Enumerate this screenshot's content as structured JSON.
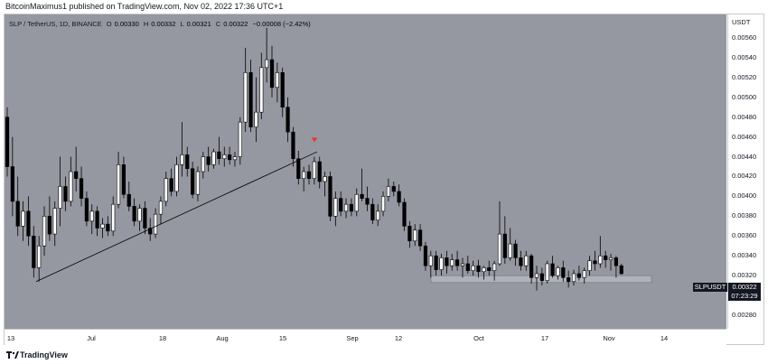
{
  "header": {
    "publish_text": "BitcoinMaximus1 published on TradingView.com, Nov 02, 2022 17:36 UTC+1"
  },
  "legend": {
    "symbol": "SLP / TetherUS, 1D, BINANCE",
    "o_label": "O",
    "o_value": "0.00330",
    "h_label": "H",
    "h_value": "0.00332",
    "l_label": "L",
    "l_value": "0.00321",
    "c_label": "C",
    "c_value": "0.00322",
    "change": "−0.00008 (−2.42%)"
  },
  "price_scale": {
    "currency": "USDT",
    "ticks": [
      "0.00560",
      "0.00540",
      "0.00520",
      "0.00500",
      "0.00480",
      "0.00460",
      "0.00440",
      "0.00420",
      "0.00400",
      "0.00380",
      "0.00360",
      "0.00340",
      "0.00320",
      "0.00300",
      "0.00280"
    ]
  },
  "last_price": {
    "symbol": "SLPUSDT",
    "price": "0.00322",
    "countdown": "07:23:29"
  },
  "time_scale": {
    "ticks": [
      "13",
      "Jul",
      "18",
      "Aug",
      "15",
      "Sep",
      "12",
      "Oct",
      "17",
      "Nov",
      "14"
    ]
  },
  "footer": {
    "brand": "TradingView",
    "logo_icon": "tradingview-logo-icon"
  },
  "colors": {
    "plot_bg": "#9598a1",
    "up_candle": "#ffffff",
    "down_candle": "#000000",
    "marker": "#e53935",
    "support_zone": "#b2b5be"
  },
  "chart_data": {
    "type": "candlestick",
    "y_range": [
      0.0027,
      0.0058
    ],
    "annotations": [
      {
        "type": "trendline",
        "from": [
          "Jun 15",
          0.00314
        ],
        "to": [
          "Aug 21",
          0.00445
        ]
      },
      {
        "type": "marker",
        "shape": "down-triangle",
        "at": [
          "Aug 20",
          0.00457
        ]
      },
      {
        "type": "zone",
        "from": "Sep 26",
        "to": "Nov 11",
        "y_range": [
          0.00313,
          0.0032
        ]
      }
    ],
    "candles": [
      [
        0.0048,
        0.0049,
        0.0042,
        0.0043
      ],
      [
        0.0043,
        0.0046,
        0.0038,
        0.00395
      ],
      [
        0.00395,
        0.0042,
        0.0036,
        0.0037
      ],
      [
        0.0037,
        0.00395,
        0.00355,
        0.00385
      ],
      [
        0.00385,
        0.004,
        0.0035,
        0.0036
      ],
      [
        0.0036,
        0.0037,
        0.00318,
        0.00328
      ],
      [
        0.00328,
        0.0036,
        0.00314,
        0.0035
      ],
      [
        0.0035,
        0.0039,
        0.0034,
        0.0038
      ],
      [
        0.0038,
        0.004,
        0.00355,
        0.00362
      ],
      [
        0.00362,
        0.00395,
        0.0035,
        0.00388
      ],
      [
        0.00388,
        0.0044,
        0.0037,
        0.0041
      ],
      [
        0.0041,
        0.0042,
        0.00385,
        0.00395
      ],
      [
        0.00395,
        0.0044,
        0.0039,
        0.00425
      ],
      [
        0.00425,
        0.0045,
        0.00405,
        0.00418
      ],
      [
        0.00418,
        0.0043,
        0.0039,
        0.00398
      ],
      [
        0.00398,
        0.00405,
        0.0037,
        0.00375
      ],
      [
        0.00375,
        0.00392,
        0.00362,
        0.00385
      ],
      [
        0.00385,
        0.0039,
        0.0036,
        0.00368
      ],
      [
        0.00368,
        0.00378,
        0.00358,
        0.00372
      ],
      [
        0.00372,
        0.0038,
        0.0036,
        0.00365
      ],
      [
        0.00365,
        0.004,
        0.0036,
        0.00392
      ],
      [
        0.00392,
        0.00445,
        0.00388,
        0.00432
      ],
      [
        0.00432,
        0.0044,
        0.00398,
        0.00402
      ],
      [
        0.00402,
        0.00415,
        0.00385,
        0.0039
      ],
      [
        0.0039,
        0.00398,
        0.0037,
        0.00375
      ],
      [
        0.00375,
        0.00392,
        0.00365,
        0.00388
      ],
      [
        0.00388,
        0.00395,
        0.00362,
        0.00368
      ],
      [
        0.00368,
        0.00378,
        0.00355,
        0.00362
      ],
      [
        0.00362,
        0.00388,
        0.00358,
        0.00382
      ],
      [
        0.00382,
        0.004,
        0.00372,
        0.00395
      ],
      [
        0.00395,
        0.00425,
        0.0039,
        0.00418
      ],
      [
        0.00418,
        0.00428,
        0.004,
        0.00405
      ],
      [
        0.00405,
        0.0044,
        0.004,
        0.00432
      ],
      [
        0.00432,
        0.00475,
        0.0042,
        0.00442
      ],
      [
        0.00442,
        0.0045,
        0.0042,
        0.00428
      ],
      [
        0.00428,
        0.00435,
        0.00398,
        0.00402
      ],
      [
        0.00402,
        0.0043,
        0.00395,
        0.00425
      ],
      [
        0.00425,
        0.00445,
        0.00418,
        0.0044
      ],
      [
        0.0044,
        0.0045,
        0.00425,
        0.00432
      ],
      [
        0.00432,
        0.00448,
        0.00428,
        0.00445
      ],
      [
        0.00445,
        0.0046,
        0.00432,
        0.00438
      ],
      [
        0.00438,
        0.0045,
        0.0043,
        0.00442
      ],
      [
        0.00442,
        0.0045,
        0.00432,
        0.00437
      ],
      [
        0.00437,
        0.00445,
        0.0043,
        0.0044
      ],
      [
        0.0044,
        0.0048,
        0.00432,
        0.00475
      ],
      [
        0.00475,
        0.0055,
        0.00465,
        0.00525
      ],
      [
        0.00525,
        0.00538,
        0.00465,
        0.0047
      ],
      [
        0.0047,
        0.0052,
        0.00455,
        0.00485
      ],
      [
        0.00485,
        0.00545,
        0.00478,
        0.0053
      ],
      [
        0.0053,
        0.0057,
        0.00515,
        0.00538
      ],
      [
        0.00538,
        0.00552,
        0.005,
        0.0051
      ],
      [
        0.0051,
        0.00535,
        0.00495,
        0.00525
      ],
      [
        0.00525,
        0.0053,
        0.0048,
        0.0049
      ],
      [
        0.0049,
        0.005,
        0.00455,
        0.00465
      ],
      [
        0.00465,
        0.0047,
        0.0043,
        0.00438
      ],
      [
        0.00438,
        0.00446,
        0.00412,
        0.00418
      ],
      [
        0.00418,
        0.0043,
        0.00405,
        0.00425
      ],
      [
        0.00425,
        0.00432,
        0.00412,
        0.00418
      ],
      [
        0.00418,
        0.0044,
        0.00412,
        0.00435
      ],
      [
        0.00435,
        0.0044,
        0.00408,
        0.00415
      ],
      [
        0.00415,
        0.00425,
        0.004,
        0.0042
      ],
      [
        0.0042,
        0.00425,
        0.00375,
        0.0038
      ],
      [
        0.0038,
        0.00405,
        0.0037,
        0.00398
      ],
      [
        0.00398,
        0.00405,
        0.0038,
        0.00385
      ],
      [
        0.00385,
        0.00398,
        0.00378,
        0.00392
      ],
      [
        0.00392,
        0.00398,
        0.0038,
        0.00385
      ],
      [
        0.00385,
        0.00408,
        0.0038,
        0.00402
      ],
      [
        0.00402,
        0.00428,
        0.00395,
        0.00398
      ],
      [
        0.00398,
        0.0041,
        0.00385,
        0.00392
      ],
      [
        0.00392,
        0.00398,
        0.00372,
        0.00376
      ],
      [
        0.00376,
        0.00392,
        0.0037,
        0.00385
      ],
      [
        0.00385,
        0.00405,
        0.0038,
        0.004
      ],
      [
        0.004,
        0.00418,
        0.00395,
        0.0041
      ],
      [
        0.0041,
        0.00415,
        0.004,
        0.00405
      ],
      [
        0.00405,
        0.00412,
        0.0039,
        0.00394
      ],
      [
        0.00394,
        0.00398,
        0.00365,
        0.0037
      ],
      [
        0.0037,
        0.00375,
        0.00348,
        0.00355
      ],
      [
        0.00355,
        0.00372,
        0.0035,
        0.00366
      ],
      [
        0.00366,
        0.00372,
        0.00345,
        0.0035
      ],
      [
        0.0035,
        0.00354,
        0.00325,
        0.0033
      ],
      [
        0.0033,
        0.00345,
        0.00318,
        0.0034
      ],
      [
        0.0034,
        0.00345,
        0.0032,
        0.00326
      ],
      [
        0.00326,
        0.00342,
        0.0032,
        0.00338
      ],
      [
        0.00338,
        0.00345,
        0.00322,
        0.0033
      ],
      [
        0.0033,
        0.00342,
        0.00325,
        0.00336
      ],
      [
        0.00336,
        0.00345,
        0.00325,
        0.0033
      ],
      [
        0.0033,
        0.00338,
        0.00318,
        0.00332
      ],
      [
        0.00332,
        0.0034,
        0.00322,
        0.00325
      ],
      [
        0.00325,
        0.00335,
        0.0032,
        0.0033
      ],
      [
        0.0033,
        0.00336,
        0.00318,
        0.00324
      ],
      [
        0.00324,
        0.0033,
        0.00316,
        0.00328
      ],
      [
        0.00328,
        0.00335,
        0.0032,
        0.00325
      ],
      [
        0.00325,
        0.00335,
        0.00315,
        0.00332
      ],
      [
        0.00332,
        0.00395,
        0.0033,
        0.00362
      ],
      [
        0.00362,
        0.0038,
        0.00332,
        0.00338
      ],
      [
        0.00338,
        0.00368,
        0.00335,
        0.00352
      ],
      [
        0.00352,
        0.00356,
        0.0033,
        0.00338
      ],
      [
        0.00338,
        0.00345,
        0.00325,
        0.0033
      ],
      [
        0.0033,
        0.00345,
        0.00325,
        0.0034
      ],
      [
        0.0034,
        0.00342,
        0.00312,
        0.00318
      ],
      [
        0.00318,
        0.0033,
        0.00305,
        0.00322
      ],
      [
        0.00322,
        0.00328,
        0.0031,
        0.00315
      ],
      [
        0.00315,
        0.00335,
        0.00312,
        0.00332
      ],
      [
        0.00332,
        0.0034,
        0.00318,
        0.0032
      ],
      [
        0.0032,
        0.0033,
        0.00316,
        0.00328
      ],
      [
        0.00328,
        0.00335,
        0.00314,
        0.00318
      ],
      [
        0.00318,
        0.00325,
        0.00308,
        0.00314
      ],
      [
        0.00314,
        0.00326,
        0.0031,
        0.00322
      ],
      [
        0.00322,
        0.0033,
        0.00315,
        0.00318
      ],
      [
        0.00318,
        0.00328,
        0.00312,
        0.00325
      ],
      [
        0.00325,
        0.0034,
        0.0032,
        0.00335
      ],
      [
        0.00335,
        0.00345,
        0.00325,
        0.00332
      ],
      [
        0.00332,
        0.0036,
        0.00328,
        0.0034
      ],
      [
        0.0034,
        0.00345,
        0.00328,
        0.00336
      ],
      [
        0.00336,
        0.00342,
        0.00325,
        0.00338
      ],
      [
        0.00338,
        0.0034,
        0.00318,
        0.0033
      ],
      [
        0.0033,
        0.00332,
        0.00321,
        0.00322
      ]
    ]
  }
}
